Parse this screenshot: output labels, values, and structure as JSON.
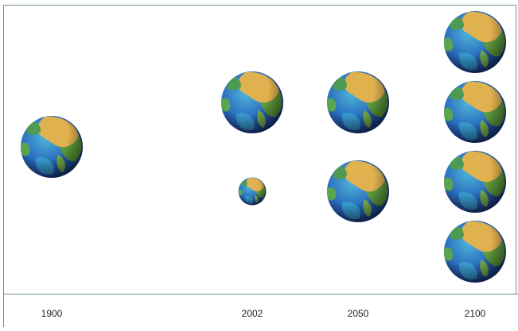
{
  "chart_data": {
    "type": "pictogram",
    "categories": [
      "1900",
      "2002",
      "2050",
      "2100"
    ],
    "values": [
      1,
      1.2,
      2,
      4
    ]
  }
}
